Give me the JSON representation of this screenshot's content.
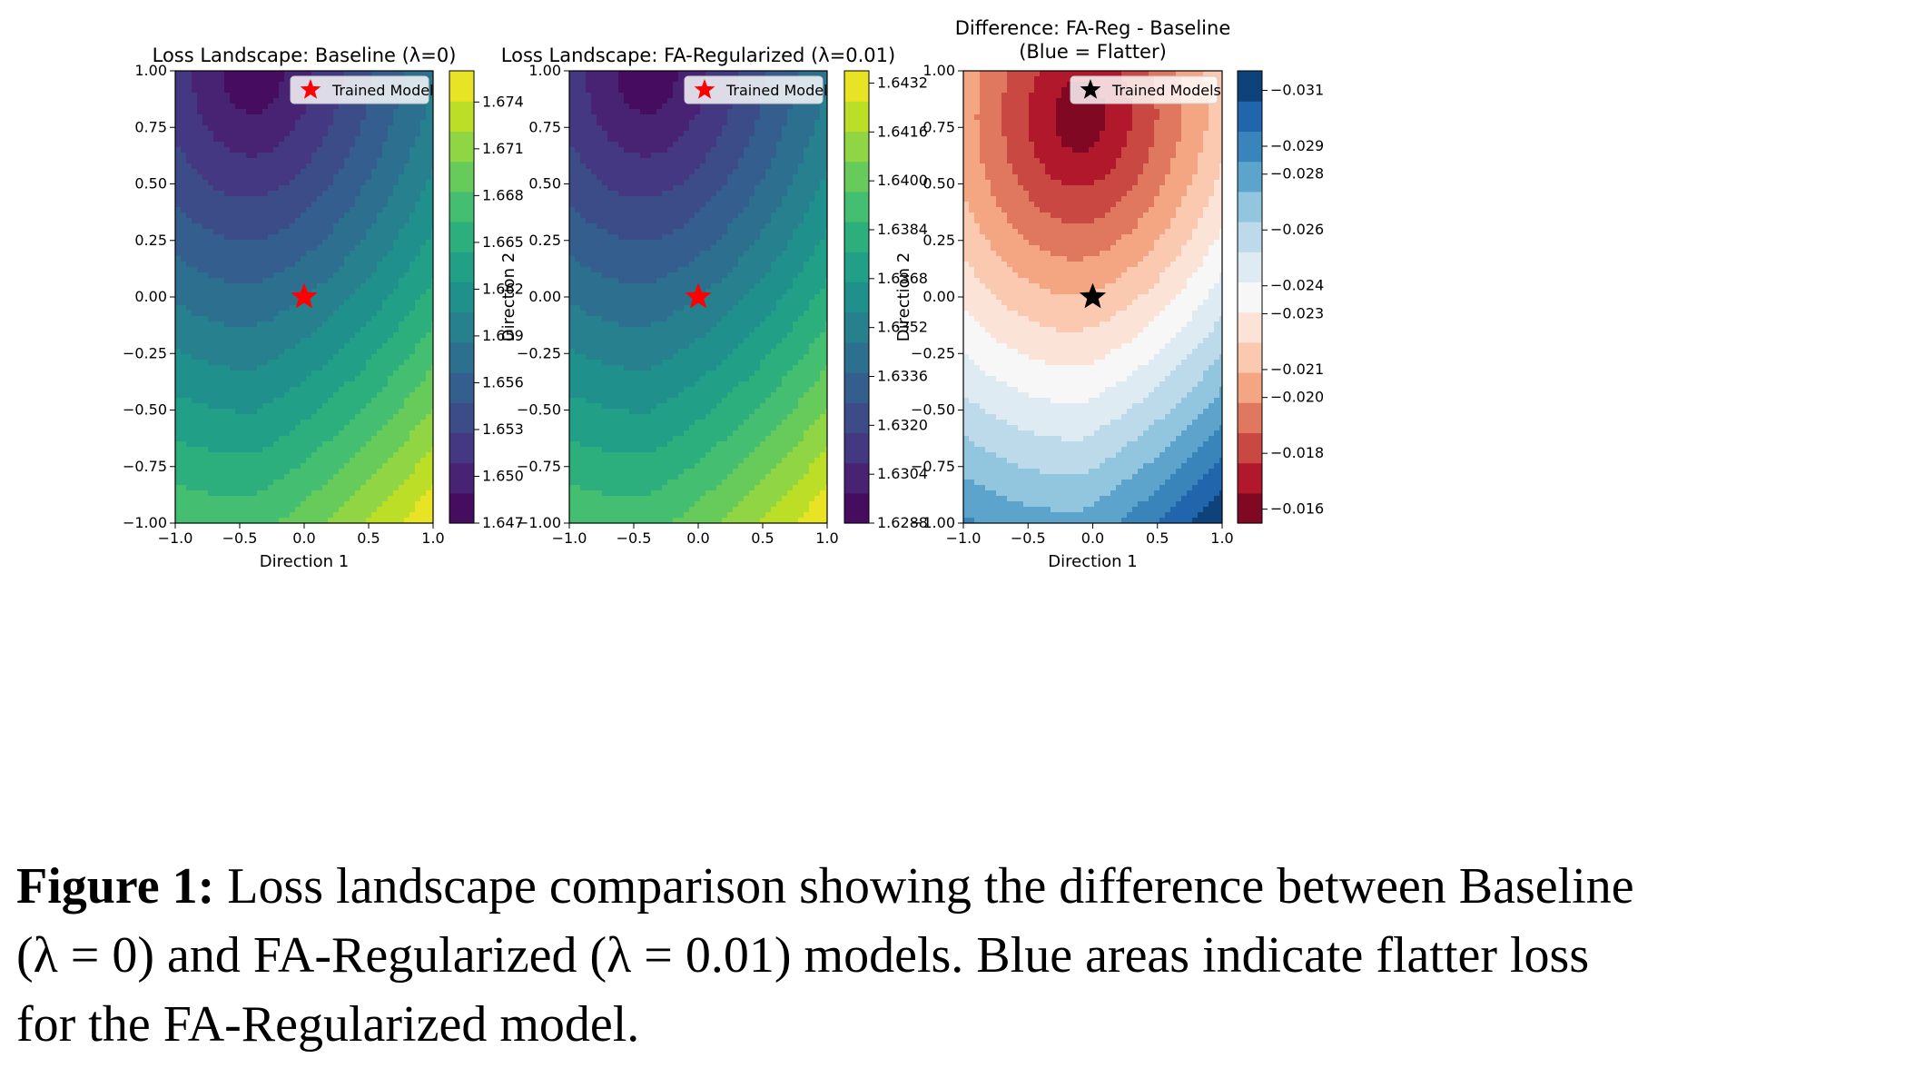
{
  "caption": {
    "label": "Figure 1:",
    "line1": "Loss landscape comparison showing the difference between Baseline",
    "line2": "(λ = 0) and FA-Regularized (λ = 0.01) models. Blue areas indicate flatter loss",
    "line3": "for the FA-Regularized model."
  },
  "chart_data": [
    {
      "type": "heatmap",
      "title": "Loss Landscape: Baseline (λ=0)",
      "xlabel": "Direction 1",
      "ylabel": "Direction 2",
      "xlim": [
        -1.0,
        1.0
      ],
      "ylim": [
        -1.0,
        1.0
      ],
      "xticks": [
        "−1.0",
        "−0.5",
        "0.0",
        "0.5",
        "1.0"
      ],
      "xtick_values": [
        -1.0,
        -0.5,
        0.0,
        0.5,
        1.0
      ],
      "yticks": [
        "1.00",
        "0.75",
        "0.50",
        "0.25",
        "0.00",
        "−0.25",
        "−0.50",
        "−0.75",
        "−1.00"
      ],
      "ytick_values": [
        1.0,
        0.75,
        0.5,
        0.25,
        0.0,
        -0.25,
        -0.5,
        -0.75,
        -1.0
      ],
      "colormap": "viridis",
      "clim": [
        1.647,
        1.676
      ],
      "levels": 15,
      "minimum": [
        -0.4,
        1.0
      ],
      "colorbar_ticks": [
        "1.674",
        "1.671",
        "1.668",
        "1.665",
        "1.662",
        "1.659",
        "1.656",
        "1.653",
        "1.650",
        "1.647"
      ],
      "colorbar_tick_values": [
        1.674,
        1.671,
        1.668,
        1.665,
        1.662,
        1.659,
        1.656,
        1.653,
        1.65,
        1.647
      ],
      "marker": {
        "x": 0.0,
        "y": 0.0,
        "label": "Trained Model",
        "color": "#ff0000"
      },
      "legend_position": "top-right"
    },
    {
      "type": "heatmap",
      "title": "Loss Landscape: FA-Regularized (λ=0.01)",
      "xlabel": "",
      "ylabel": "Direction 2",
      "xlim": [
        -1.0,
        1.0
      ],
      "ylim": [
        -1.0,
        1.0
      ],
      "xticks": [
        "−1.0",
        "−0.5",
        "0.0",
        "0.5",
        "1.0"
      ],
      "xtick_values": [
        -1.0,
        -0.5,
        0.0,
        0.5,
        1.0
      ],
      "yticks": [
        "1.00",
        "0.75",
        "0.50",
        "0.25",
        "0.00",
        "−0.25",
        "−0.50",
        "−0.75",
        "−1.00"
      ],
      "ytick_values": [
        1.0,
        0.75,
        0.5,
        0.25,
        0.0,
        -0.25,
        -0.5,
        -0.75,
        -1.0
      ],
      "colormap": "viridis",
      "clim": [
        1.6288,
        1.6436
      ],
      "levels": 15,
      "minimum": [
        -0.4,
        1.0
      ],
      "colorbar_ticks": [
        "1.6432",
        "1.6416",
        "1.6400",
        "1.6384",
        "1.6368",
        "1.6352",
        "1.6336",
        "1.6320",
        "1.6304",
        "1.6288"
      ],
      "colorbar_tick_values": [
        1.6432,
        1.6416,
        1.64,
        1.6384,
        1.6368,
        1.6352,
        1.6336,
        1.632,
        1.6304,
        1.6288
      ],
      "marker": {
        "x": 0.0,
        "y": 0.0,
        "label": "Trained Model",
        "color": "#ff0000"
      },
      "legend_position": "top-right"
    },
    {
      "type": "heatmap",
      "title": "Difference: FA-Reg - Baseline",
      "subtitle": "(Blue = Flatter)",
      "xlabel": "Direction 1",
      "ylabel": "",
      "xlim": [
        -1.0,
        1.0
      ],
      "ylim": [
        -1.0,
        1.0
      ],
      "xticks": [
        "−1.0",
        "−0.5",
        "0.0",
        "0.5",
        "1.0"
      ],
      "xtick_values": [
        -1.0,
        -0.5,
        0.0,
        0.5,
        1.0
      ],
      "yticks": [
        "1.00",
        "0.75",
        "0.50",
        "0.25",
        "0.00",
        "−0.25",
        "−0.50",
        "−0.75",
        "−1.00"
      ],
      "ytick_values": [
        1.0,
        0.75,
        0.5,
        0.25,
        0.0,
        -0.25,
        -0.5,
        -0.75,
        -1.0
      ],
      "colormap": "RdBu",
      "clim": [
        -0.0317,
        -0.0155
      ],
      "levels": 15,
      "minimum": [
        -0.1,
        0.8
      ],
      "colorbar_ticks": [
        "−0.016",
        "−0.018",
        "−0.020",
        "−0.021",
        "−0.023",
        "−0.024",
        "−0.026",
        "−0.028",
        "−0.029",
        "−0.031"
      ],
      "colorbar_tick_values": [
        -0.016,
        -0.018,
        -0.02,
        -0.021,
        -0.023,
        -0.024,
        -0.026,
        -0.028,
        -0.029,
        -0.031
      ],
      "marker": {
        "x": 0.0,
        "y": 0.0,
        "label": "Trained Models",
        "color": "#000000"
      },
      "legend_position": "top-right"
    }
  ]
}
